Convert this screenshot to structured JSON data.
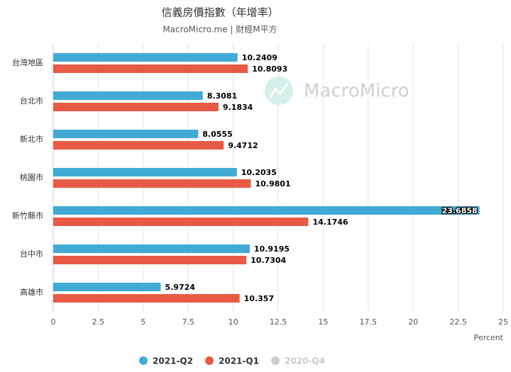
{
  "chart_data": {
    "type": "hbar",
    "title": "信義房價指數（年增率）",
    "subtitle": "MacroMicro.me | 財經M平方",
    "watermark": "MacroMicro",
    "x_label": "Percent",
    "categories": [
      "台灣地區",
      "台北市",
      "新北市",
      "桃園市",
      "新竹縣市",
      "台中市",
      "高雄市"
    ],
    "series": [
      {
        "name": "2021-Q2",
        "color": "#41abd6",
        "values": [
          10.2409,
          8.3081,
          8.0555,
          10.2035,
          23.6858,
          10.9195,
          5.9724
        ]
      },
      {
        "name": "2021-Q1",
        "color": "#e95a44",
        "values": [
          10.8093,
          9.1834,
          9.4712,
          10.9801,
          14.1746,
          10.7304,
          10.357
        ]
      },
      {
        "name": "2020-Q4",
        "color": "#cccccc",
        "visible": false,
        "values": [
          null,
          null,
          null,
          null,
          null,
          null,
          null
        ]
      }
    ],
    "xlim": [
      0,
      25
    ],
    "xticks": [
      0,
      2.5,
      5,
      7.5,
      10,
      12.5,
      15,
      17.5,
      20,
      22.5,
      25
    ],
    "grid": true
  }
}
